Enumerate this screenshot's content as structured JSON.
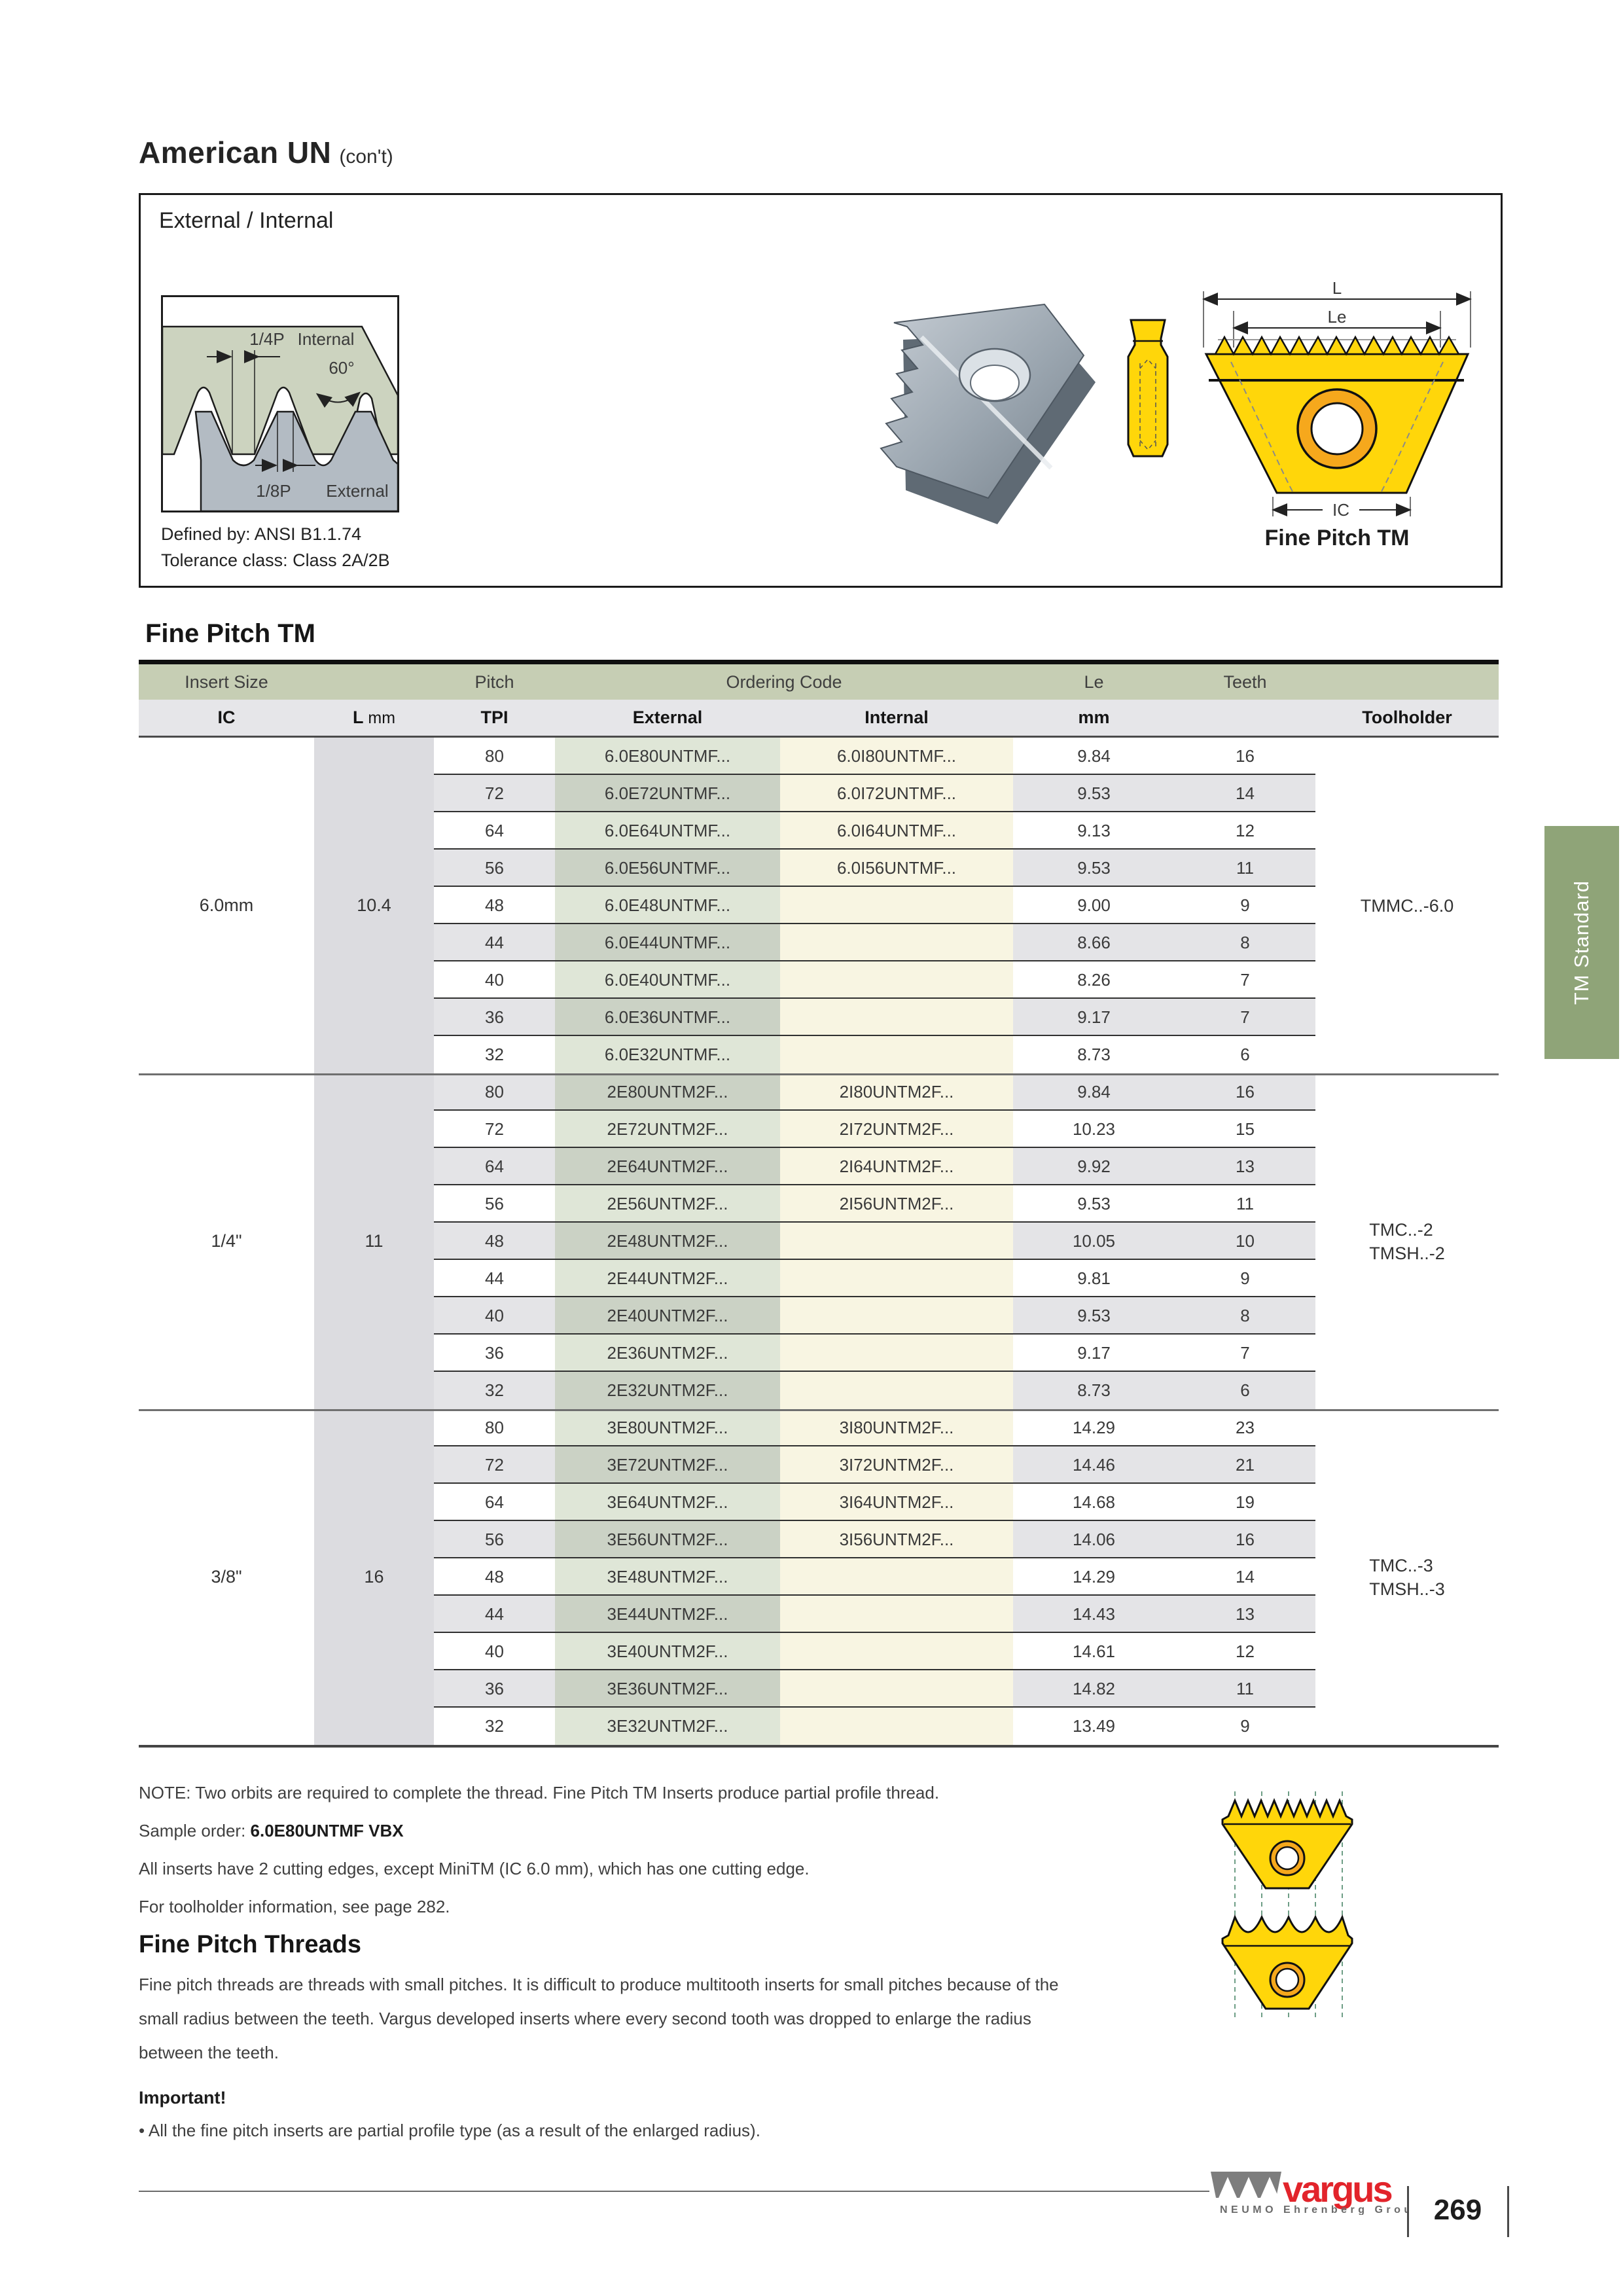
{
  "page": {
    "title": "American UN",
    "title_suffix": "(con't)",
    "page_number": "269",
    "side_tab": "TM Standard",
    "footer_brand": "vargus",
    "footer_group": "NEUMO Ehrenberg Group"
  },
  "colors": {
    "side_tab_green": "#8fa478",
    "header_green": "#c6ceb4",
    "row_gray": "#e4e4e7",
    "internal_cream": "#f8f5e2",
    "external_tint": "#dfe6d4",
    "insert_yellow": "#ffd60a",
    "ring_orange": "#f6a81c",
    "diagram_internal_green": "#ccd3bf",
    "diagram_external_gray": "#b3bbc3",
    "logo_red": "#e2242b"
  },
  "profile_box": {
    "heading": "External / Internal",
    "defined_by": "Defined by: ANSI B1.1.74",
    "tolerance_class": "Tolerance class: Class 2A/2B",
    "insert_label": "Fine Pitch TM",
    "diagram_labels": {
      "quarter_pitch": "1/4P",
      "internal": "Internal",
      "angle": "60°",
      "eighth_pitch": "1/8P",
      "external": "External"
    },
    "dimension_labels": {
      "length": "L",
      "effective_length": "Le",
      "inscribed_circle": "IC"
    }
  },
  "table": {
    "section_title": "Fine Pitch TM",
    "header1": {
      "insert_size": "Insert Size",
      "pitch": "Pitch",
      "ordering_code": "Ordering Code",
      "le": "Le",
      "teeth": "Teeth"
    },
    "header2": {
      "ic": "IC",
      "l": "L",
      "l_unit": " mm",
      "tpi": "TPI",
      "external": "External",
      "internal": "Internal",
      "mm": "mm",
      "toolholder": "Toolholder"
    },
    "groups": [
      {
        "ic": "6.0mm",
        "l": "10.4",
        "toolholder": [
          "TMMC..-6.0"
        ],
        "rows": [
          {
            "tpi": "80",
            "external": "6.0E80UNTMF...",
            "internal": "6.0I80UNTMF...",
            "le": "9.84",
            "teeth": "16"
          },
          {
            "tpi": "72",
            "external": "6.0E72UNTMF...",
            "internal": "6.0I72UNTMF...",
            "le": "9.53",
            "teeth": "14"
          },
          {
            "tpi": "64",
            "external": "6.0E64UNTMF...",
            "internal": "6.0I64UNTMF...",
            "le": "9.13",
            "teeth": "12"
          },
          {
            "tpi": "56",
            "external": "6.0E56UNTMF...",
            "internal": "6.0I56UNTMF...",
            "le": "9.53",
            "teeth": "11"
          },
          {
            "tpi": "48",
            "external": "6.0E48UNTMF...",
            "internal": "",
            "le": "9.00",
            "teeth": "9"
          },
          {
            "tpi": "44",
            "external": "6.0E44UNTMF...",
            "internal": "",
            "le": "8.66",
            "teeth": "8"
          },
          {
            "tpi": "40",
            "external": "6.0E40UNTMF...",
            "internal": "",
            "le": "8.26",
            "teeth": "7"
          },
          {
            "tpi": "36",
            "external": "6.0E36UNTMF...",
            "internal": "",
            "le": "9.17",
            "teeth": "7"
          },
          {
            "tpi": "32",
            "external": "6.0E32UNTMF...",
            "internal": "",
            "le": "8.73",
            "teeth": "6"
          }
        ]
      },
      {
        "ic": "1/4\"",
        "l": "11",
        "toolholder": [
          "TMC..-2",
          "TMSH..-2"
        ],
        "rows": [
          {
            "tpi": "80",
            "external": "2E80UNTM2F...",
            "internal": "2I80UNTM2F...",
            "le": "9.84",
            "teeth": "16"
          },
          {
            "tpi": "72",
            "external": "2E72UNTM2F...",
            "internal": "2I72UNTM2F...",
            "le": "10.23",
            "teeth": "15"
          },
          {
            "tpi": "64",
            "external": "2E64UNTM2F...",
            "internal": "2I64UNTM2F...",
            "le": "9.92",
            "teeth": "13"
          },
          {
            "tpi": "56",
            "external": "2E56UNTM2F...",
            "internal": "2I56UNTM2F...",
            "le": "9.53",
            "teeth": "11"
          },
          {
            "tpi": "48",
            "external": "2E48UNTM2F...",
            "internal": "",
            "le": "10.05",
            "teeth": "10"
          },
          {
            "tpi": "44",
            "external": "2E44UNTM2F...",
            "internal": "",
            "le": "9.81",
            "teeth": "9"
          },
          {
            "tpi": "40",
            "external": "2E40UNTM2F...",
            "internal": "",
            "le": "9.53",
            "teeth": "8"
          },
          {
            "tpi": "36",
            "external": "2E36UNTM2F...",
            "internal": "",
            "le": "9.17",
            "teeth": "7"
          },
          {
            "tpi": "32",
            "external": "2E32UNTM2F...",
            "internal": "",
            "le": "8.73",
            "teeth": "6"
          }
        ]
      },
      {
        "ic": "3/8\"",
        "l": "16",
        "toolholder": [
          "TMC..-3",
          "TMSH..-3"
        ],
        "rows": [
          {
            "tpi": "80",
            "external": "3E80UNTM2F...",
            "internal": "3I80UNTM2F...",
            "le": "14.29",
            "teeth": "23"
          },
          {
            "tpi": "72",
            "external": "3E72UNTM2F...",
            "internal": "3I72UNTM2F...",
            "le": "14.46",
            "teeth": "21"
          },
          {
            "tpi": "64",
            "external": "3E64UNTM2F...",
            "internal": "3I64UNTM2F...",
            "le": "14.68",
            "teeth": "19"
          },
          {
            "tpi": "56",
            "external": "3E56UNTM2F...",
            "internal": "3I56UNTM2F...",
            "le": "14.06",
            "teeth": "16"
          },
          {
            "tpi": "48",
            "external": "3E48UNTM2F...",
            "internal": "",
            "le": "14.29",
            "teeth": "14"
          },
          {
            "tpi": "44",
            "external": "3E44UNTM2F...",
            "internal": "",
            "le": "14.43",
            "teeth": "13"
          },
          {
            "tpi": "40",
            "external": "3E40UNTM2F...",
            "internal": "",
            "le": "14.61",
            "teeth": "12"
          },
          {
            "tpi": "36",
            "external": "3E36UNTM2F...",
            "internal": "",
            "le": "14.82",
            "teeth": "11"
          },
          {
            "tpi": "32",
            "external": "3E32UNTM2F...",
            "internal": "",
            "le": "13.49",
            "teeth": "9"
          }
        ]
      }
    ]
  },
  "notes": {
    "note": "NOTE: Two orbits are required to complete the thread. Fine Pitch TM Inserts produce partial profile thread.",
    "sample_order_label": "Sample order: ",
    "sample_order_value": "6.0E80UNTMF VBX",
    "edges": "All inserts have 2 cutting edges, except MiniTM (IC 6.0 mm), which has one cutting edge.",
    "toolholder_info": "For toolholder information, see page 282."
  },
  "fine_pitch_threads": {
    "heading": "Fine Pitch Threads",
    "body": "Fine pitch threads are threads with small pitches. It is difficult to produce multitooth inserts for small pitches because of the small radius between the teeth. Vargus developed inserts where every second tooth was dropped to enlarge the radius between the teeth.",
    "important": "Important!",
    "bullet": "• All the fine pitch inserts are partial profile type (as a result of the enlarged radius)."
  }
}
